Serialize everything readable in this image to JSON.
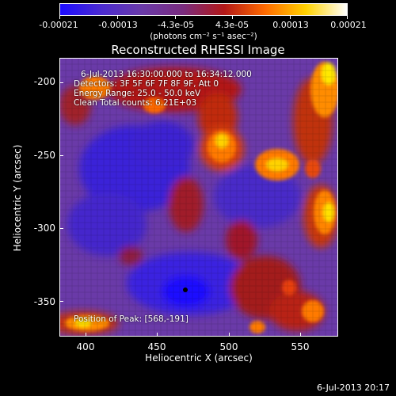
{
  "colorbar": {
    "tick_labels": [
      "-0.00021",
      "-0.00013",
      "-4.3e-05",
      "4.3e-05",
      "0.00013",
      "0.00021"
    ],
    "unit_label": "(photons cm⁻² s⁻¹ asec⁻²)",
    "colormap": [
      "#1d0cff",
      "#4b2bd0",
      "#6a3aa8",
      "#7a2c7f",
      "#b21818",
      "#ff6a00",
      "#ffd200",
      "#ffffff"
    ]
  },
  "image": {
    "title": "Reconstructed RHESSI Image",
    "info_lines": [
      "6-Jul-2013 16:30:00.000 to 16:34:12.000",
      "Detectors: 3F 5F 6F 7F 8F 9F, Att 0",
      "Energy Range: 25.0 - 50.0 keV",
      "Clean    Total counts: 6.21E+03"
    ],
    "peak_text": "Position of Peak: [568,-191]",
    "x_axis": {
      "label": "Heliocentric X (arcsec)",
      "ticks": [
        "400",
        "450",
        "500",
        "550"
      ]
    },
    "y_axis": {
      "label": "Heliocentric Y (arcsec)",
      "ticks": [
        "-200",
        "-250",
        "-300",
        "-350"
      ]
    },
    "icon": "peak-marker-icon"
  },
  "footer": {
    "timestamp": "6-Jul-2013 20:17"
  }
}
